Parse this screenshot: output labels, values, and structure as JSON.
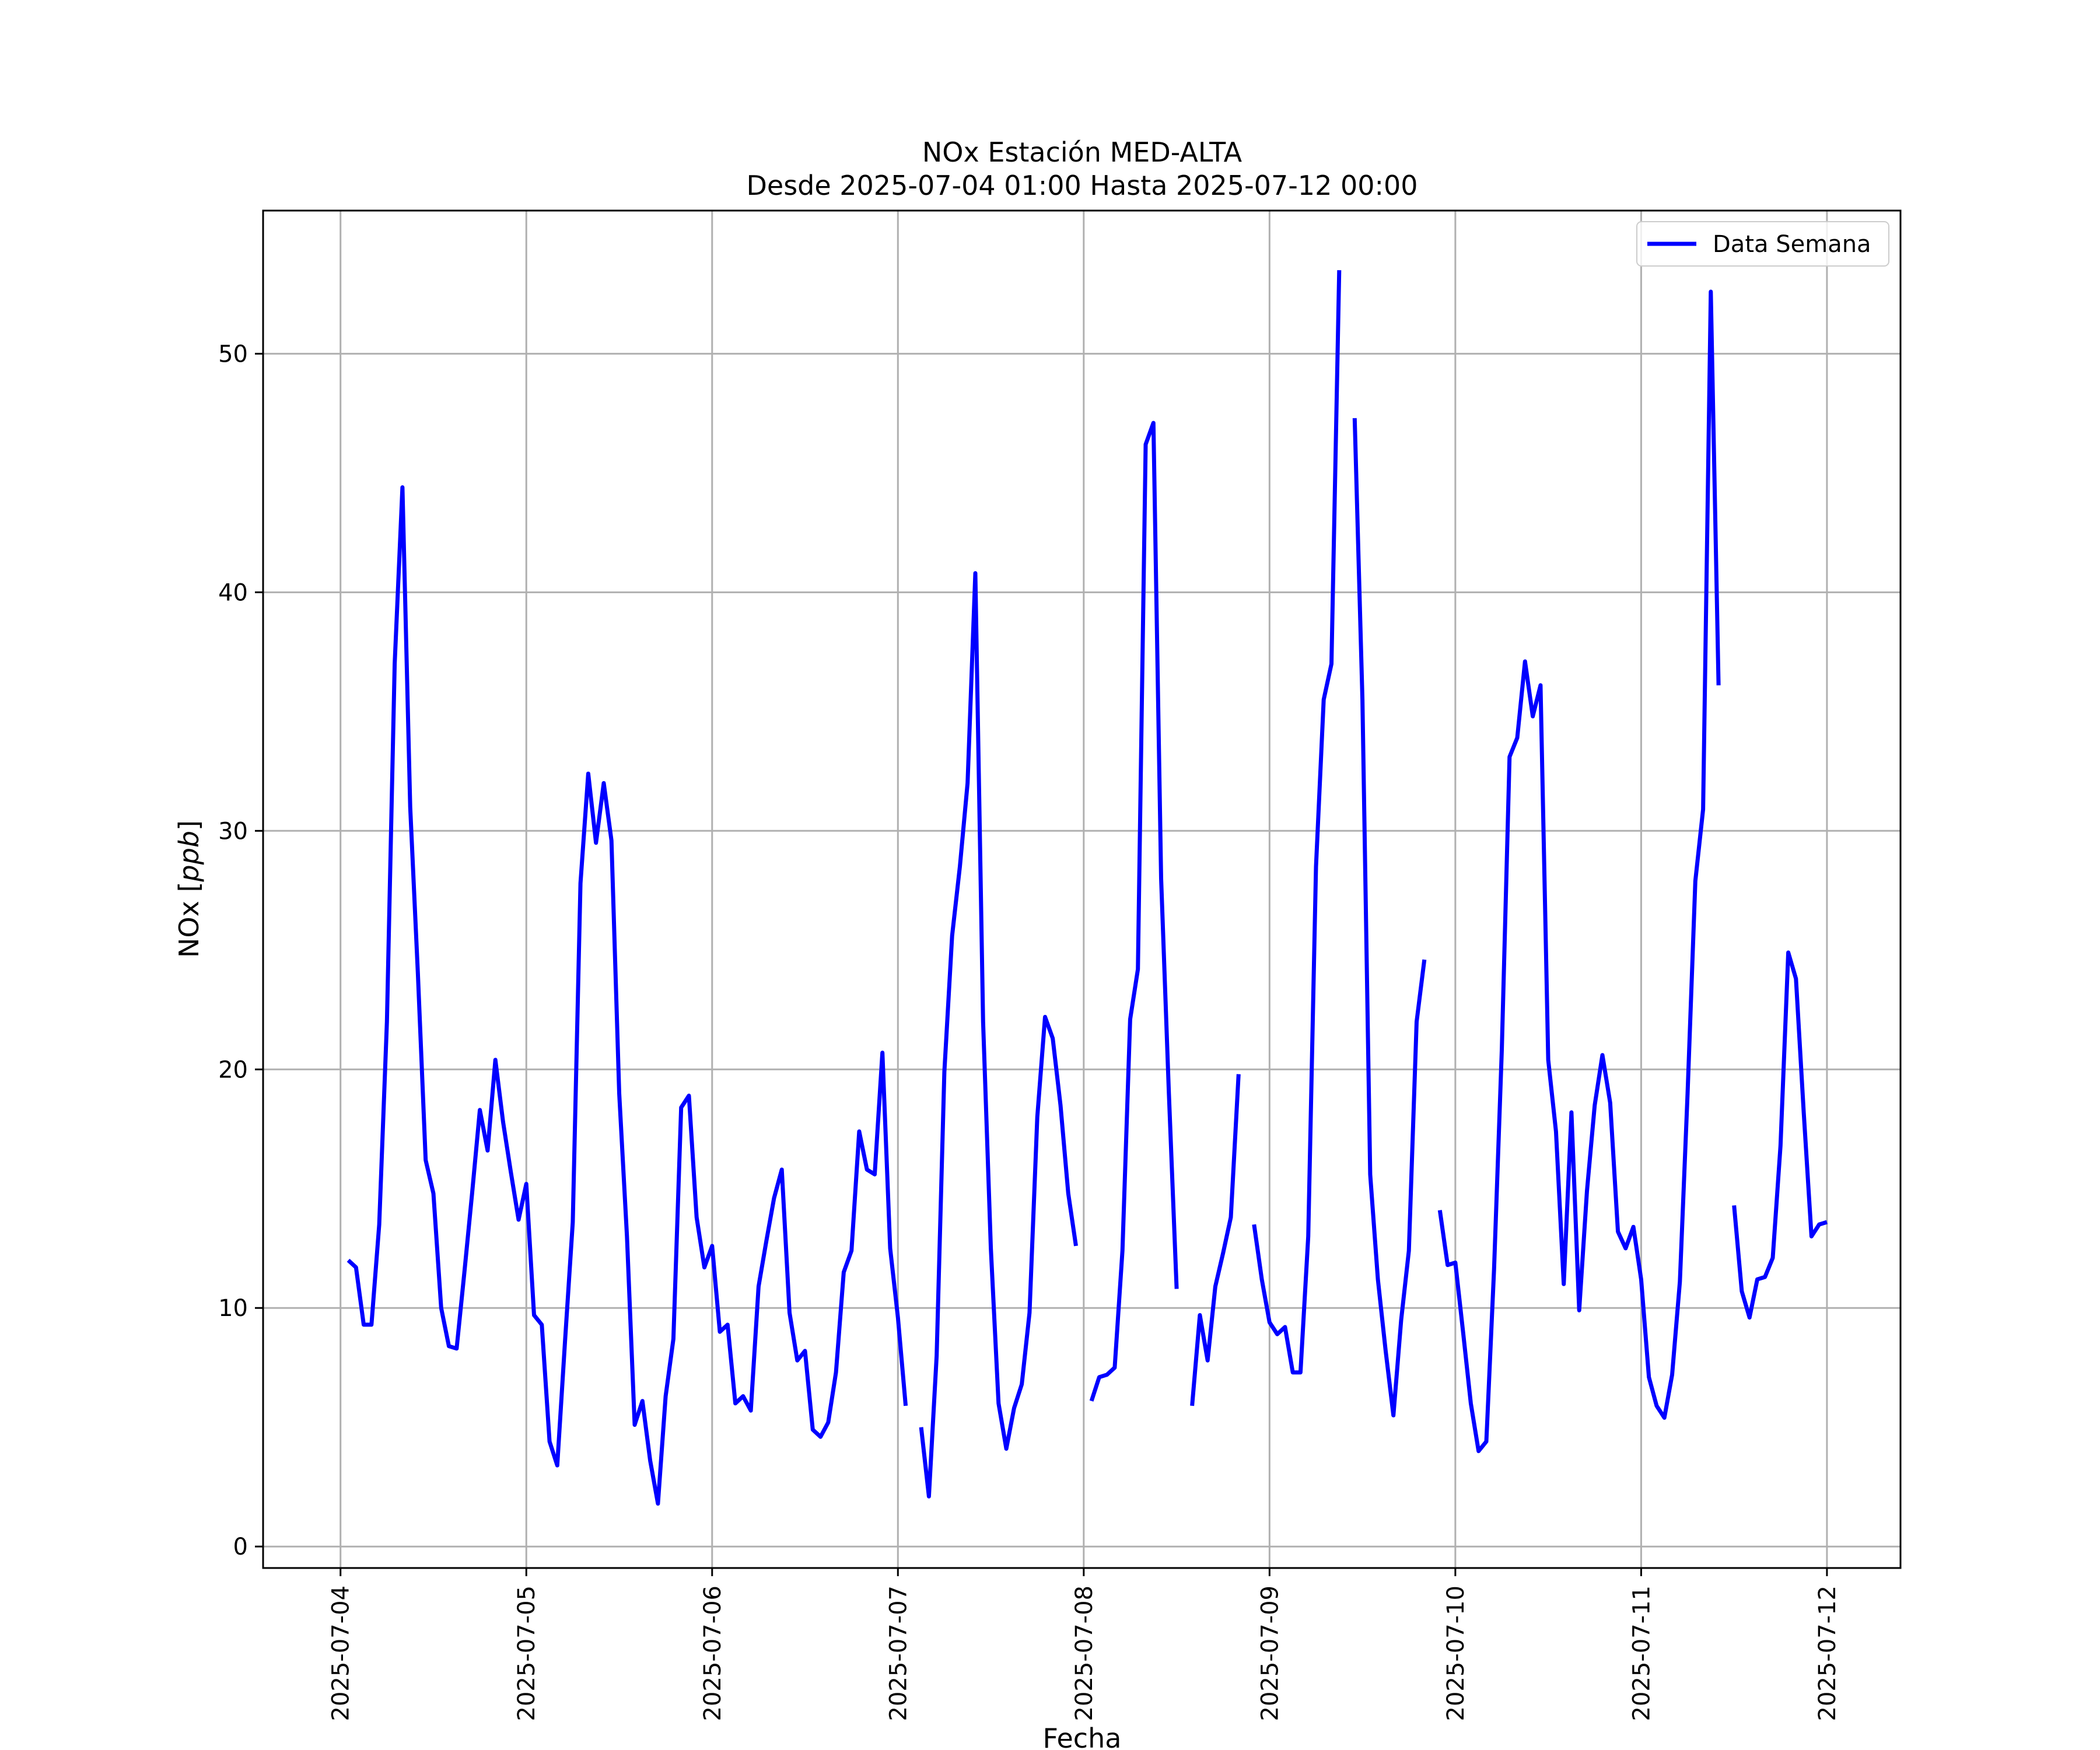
{
  "chart_data": {
    "type": "line",
    "title": "NOx Estación MED-ALTA",
    "subtitle": "Desde 2025-07-04 01:00 Hasta 2025-07-12 00:00",
    "xlabel": "Fecha",
    "ylabel_text": "NOx [",
    "ylabel_unit": "ppb",
    "ylabel_close": "]",
    "xlim": [
      "2025-07-03 14:00",
      "2025-07-12 09:30"
    ],
    "ylim": [
      -0.9,
      56
    ],
    "x_ticks": [
      "2025-07-04",
      "2025-07-05",
      "2025-07-06",
      "2025-07-07",
      "2025-07-08",
      "2025-07-09",
      "2025-07-10",
      "2025-07-11",
      "2025-07-12"
    ],
    "y_ticks": [
      "0",
      "10",
      "20",
      "30",
      "40",
      "50"
    ],
    "y_tick_values": [
      0,
      10,
      20,
      30,
      40,
      50
    ],
    "grid": true,
    "legend": {
      "position": "top-right",
      "entries": [
        "Data Semana"
      ]
    },
    "start": "2025-07-04 01:00",
    "step_hours": 1,
    "series": [
      {
        "name": "Data Semana",
        "color": "#0000ff",
        "values": [
          12.0,
          11.7,
          9.3,
          9.3,
          13.5,
          22.0,
          37.0,
          44.4,
          31.0,
          24.0,
          16.2,
          14.8,
          10.0,
          8.4,
          8.3,
          11.5,
          14.8,
          18.3,
          16.6,
          20.4,
          17.8,
          15.7,
          13.7,
          15.2,
          9.7,
          9.3,
          4.4,
          3.4,
          8.6,
          13.6,
          27.8,
          32.4,
          29.5,
          32.0,
          29.6,
          19.0,
          13.0,
          5.1,
          6.1,
          3.6,
          1.8,
          6.3,
          8.7,
          18.4,
          18.9,
          13.8,
          11.7,
          12.6,
          9.0,
          9.3,
          6.0,
          6.3,
          5.7,
          10.9,
          12.8,
          14.6,
          15.8,
          9.8,
          7.8,
          8.2,
          4.9,
          4.6,
          5.2,
          7.3,
          11.5,
          12.4,
          17.4,
          15.8,
          15.6,
          20.7,
          12.5,
          9.6,
          5.9,
          null,
          5.0,
          2.1,
          8.0,
          19.9,
          25.6,
          28.5,
          32.0,
          40.8,
          22.0,
          12.5,
          6.0,
          4.1,
          5.8,
          6.8,
          9.8,
          18.0,
          22.2,
          21.3,
          18.5,
          14.8,
          12.6,
          null,
          6.1,
          7.1,
          7.2,
          7.5,
          12.4,
          22.1,
          24.2,
          46.2,
          47.1,
          28.0,
          19.0,
          10.8,
          null,
          5.9,
          9.7,
          7.8,
          10.9,
          12.3,
          13.8,
          19.8,
          null,
          13.5,
          11.2,
          9.4,
          8.9,
          9.2,
          7.3,
          7.3,
          13.0,
          28.5,
          35.5,
          37.0,
          53.5,
          null,
          47.3,
          35.5,
          15.6,
          11.2,
          8.2,
          5.5,
          9.5,
          12.4,
          22.0,
          24.6,
          null,
          14.1,
          11.8,
          11.9,
          9.0,
          6.0,
          4.0,
          4.4,
          11.6,
          20.8,
          33.1,
          33.9,
          37.1,
          34.8,
          36.1,
          20.4,
          17.4,
          11.0,
          18.2,
          9.9,
          14.9,
          18.5,
          20.6,
          18.6,
          13.2,
          12.5,
          13.4,
          11.2,
          7.1,
          5.9,
          5.4,
          7.2,
          11.1,
          19.0,
          27.9,
          30.9,
          52.6,
          36.1,
          null,
          14.3,
          10.7,
          9.6,
          11.2,
          11.3,
          12.1,
          16.8,
          24.9,
          23.8,
          18.2,
          13.0,
          13.5,
          13.6
        ]
      }
    ]
  }
}
